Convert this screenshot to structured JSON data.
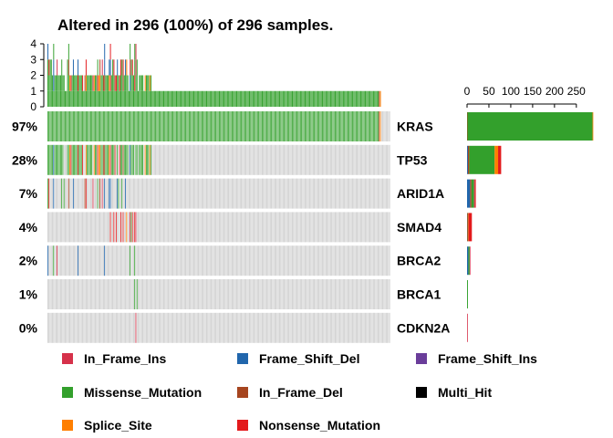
{
  "chart_data": {
    "type": "oncoplot",
    "title": "Altered in 296 (100%) of 296 samples.",
    "total_samples": 296,
    "top_axis": {
      "ticks": [
        "0",
        "1",
        "2",
        "3",
        "4"
      ],
      "max": 4
    },
    "right_axis": {
      "ticks": [
        "0",
        "50",
        "100",
        "150",
        "200",
        "250"
      ],
      "max": 290
    },
    "genes": [
      {
        "name": "KRAS",
        "pct": "97%",
        "counts": {
          "Missense_Mutation": 286,
          "In_Frame_Del": 1,
          "Splice_Site": 1
        }
      },
      {
        "name": "TP53",
        "pct": "28%",
        "counts": {
          "Frame_Shift_Del": 2,
          "In_Frame_Del": 3,
          "Missense_Mutation": 58,
          "Splice_Site": 8,
          "Nonsense_Mutation": 7
        }
      },
      {
        "name": "ARID1A",
        "pct": "7%",
        "counts": {
          "Frame_Shift_Del": 7,
          "In_Frame_Ins": 2,
          "In_Frame_Del": 3,
          "Missense_Mutation": 6,
          "Nonsense_Mutation": 2
        }
      },
      {
        "name": "SMAD4",
        "pct": "4%",
        "counts": {
          "In_Frame_Ins": 2,
          "Missense_Mutation": 1,
          "Nonsense_Mutation": 7,
          "Splice_Site": 1
        }
      },
      {
        "name": "BRCA2",
        "pct": "2%",
        "counts": {
          "Frame_Shift_Del": 3,
          "Missense_Mutation": 3,
          "In_Frame_Ins": 1
        }
      },
      {
        "name": "BRCA1",
        "pct": "1%",
        "counts": {
          "Missense_Mutation": 2
        }
      },
      {
        "name": "CDKN2A",
        "pct": "0%",
        "counts": {
          "In_Frame_Ins": 1
        }
      }
    ],
    "variant_classes": [
      {
        "name": "In_Frame_Ins",
        "color": "#d6314a"
      },
      {
        "name": "Frame_Shift_Del",
        "color": "#2166ac"
      },
      {
        "name": "Frame_Shift_Ins",
        "color": "#6a3d9a"
      },
      {
        "name": "Missense_Mutation",
        "color": "#33a02c"
      },
      {
        "name": "In_Frame_Del",
        "color": "#a6451f"
      },
      {
        "name": "Multi_Hit",
        "color": "#000000"
      },
      {
        "name": "Splice_Site",
        "color": "#ff7f00"
      },
      {
        "name": "Nonsense_Mutation",
        "color": "#e31a1c"
      }
    ],
    "background_color": "#cccccc"
  }
}
